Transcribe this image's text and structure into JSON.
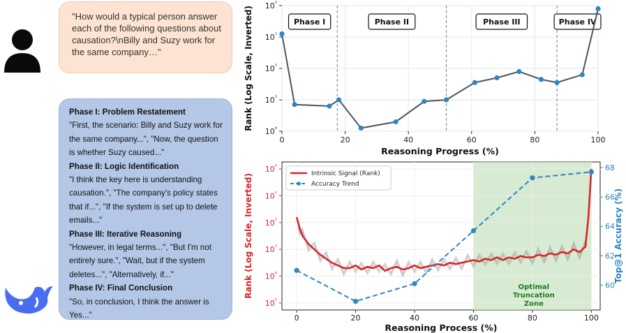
{
  "user_message": {
    "text": "\"How would a typical person answer each of the following questions about causation?\\nBilly and Suzy work for the same company…\""
  },
  "model_response": {
    "phases": [
      {
        "title": "Phase I: Problem Restatement",
        "quote": "\"First, the scenario: Billy and Suzy work for the same company...\", \"Now, the question is whether Suzy caused...\""
      },
      {
        "title": "Phase II: Logic Identification",
        "quote": "\"I think the key here is understanding causation.\", \"The company's policy states that if...\", \"If the system is set up to delete emails...\""
      },
      {
        "title": "Phase III: Iterative Reasoning",
        "quote": "\"However, in legal terms...\", \"But I'm not entirely sure.\", \"Wait, but if the system deletes...\", \"Alternatively, if...\""
      },
      {
        "title": "Phase IV: Final Conclusion",
        "quote": "\"So, in conclusion, I think the answer is Yes...\""
      }
    ]
  },
  "colors": {
    "user_bubble": "#fde3d2",
    "model_bubble": "#b4c7e7",
    "line_top": "#4a5560",
    "marker": "#2e86c1",
    "signal": "#d62728",
    "accuracy": "#2e86c1",
    "zone": "#c9e3c3"
  },
  "chart_data": [
    {
      "type": "line",
      "xlabel": "Reasoning Progress (%)",
      "ylabel": "Rank (Log Scale, Inverted)",
      "xlim": [
        0,
        100
      ],
      "ylim_log_exponent": [
        0,
        4
      ],
      "y_inverted": true,
      "x_ticks": [
        "0",
        "20",
        "40",
        "60",
        "80",
        "100"
      ],
      "y_ticks": [
        "10⁰",
        "10¹",
        "10²",
        "10³",
        "10⁴"
      ],
      "phase_labels": [
        "Phase I",
        "Phase II",
        "Phase III",
        "Phase IV"
      ],
      "phase_boundaries": [
        17.5,
        52,
        87
      ],
      "x": [
        0,
        4,
        15,
        18,
        25,
        36,
        45,
        52,
        61,
        68,
        75,
        82,
        87,
        95,
        100
      ],
      "y_log10": [
        0.9,
        3.15,
        3.2,
        3.0,
        3.9,
        3.7,
        3.05,
        3.0,
        2.45,
        2.3,
        2.1,
        2.35,
        2.45,
        2.2,
        0.1
      ]
    },
    {
      "type": "line",
      "xlabel": "Reasoning Process (%)",
      "ylabel": "Rank (Log Scale, Inverted)",
      "ylabel_right": "Top@1 Accuracy (%)",
      "xlim": [
        0,
        100
      ],
      "x_ticks": [
        "0",
        "20",
        "40",
        "60",
        "80",
        "100"
      ],
      "y_ticks": [
        "10⁰",
        "10¹",
        "10²",
        "10³",
        "10⁴",
        "10⁵"
      ],
      "y_right_ticks": [
        "60",
        "62",
        "64",
        "66",
        "68"
      ],
      "y_right_lim": [
        58.5,
        68
      ],
      "legend": [
        "Intrinsic Signal (Rank)",
        "Accuracy Trend"
      ],
      "zone_label": "Optimal\nTruncation\nZone",
      "zone_range": [
        60,
        100
      ],
      "series": [
        {
          "name": "Intrinsic Signal (Rank)",
          "axis": "left",
          "x": [
            0,
            1,
            2,
            4,
            6,
            8,
            10,
            12,
            14,
            16,
            18,
            20,
            22,
            24,
            26,
            28,
            30,
            32,
            34,
            36,
            38,
            40,
            42,
            44,
            46,
            48,
            50,
            52,
            54,
            56,
            58,
            60,
            62,
            64,
            66,
            68,
            70,
            72,
            74,
            76,
            78,
            80,
            82,
            84,
            86,
            88,
            90,
            92,
            94,
            96,
            98,
            99,
            100
          ],
          "y_log10": [
            1.8,
            2.2,
            2.5,
            2.8,
            3.0,
            3.2,
            3.35,
            3.5,
            3.6,
            3.7,
            3.7,
            3.6,
            3.75,
            3.65,
            3.7,
            3.6,
            3.8,
            3.7,
            3.65,
            3.75,
            3.7,
            3.6,
            3.7,
            3.65,
            3.6,
            3.55,
            3.6,
            3.5,
            3.55,
            3.5,
            3.45,
            3.4,
            3.45,
            3.35,
            3.4,
            3.3,
            3.4,
            3.3,
            3.35,
            3.25,
            3.3,
            3.3,
            3.2,
            3.25,
            3.15,
            3.2,
            3.1,
            3.15,
            3.0,
            3.1,
            2.9,
            1.8,
            0.0
          ]
        },
        {
          "name": "Accuracy Trend",
          "axis": "right",
          "x": [
            0,
            20,
            40,
            60,
            80,
            100
          ],
          "values": [
            61.0,
            58.9,
            60.1,
            63.7,
            67.3,
            67.7
          ]
        }
      ]
    }
  ]
}
